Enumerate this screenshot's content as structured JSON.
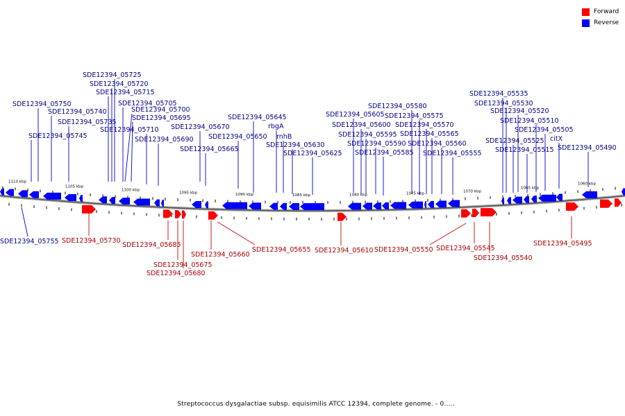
{
  "legend": [
    {
      "label": "Forward",
      "color": "#ff0000"
    },
    {
      "label": "Reverse",
      "color": "#0000ff"
    }
  ],
  "colors": {
    "forward": "#ff0000",
    "reverse": "#0000ff",
    "forward_label": "#aa0000",
    "reverse_label": "#000088"
  },
  "caption": "Streptococcus dysgalactiae subsp. equisimilis ATCC 12394, complete genome. - 0.....",
  "scale_labels": [
    "1110 kbp",
    "1105 kbp",
    "1100 kbp",
    "1095 kbp",
    "1090 kbp",
    "1085 kbp",
    "1080 kbp",
    "1075 kbp",
    "1070 kbp",
    "1065 kbp",
    "1060 kbp"
  ],
  "reverse_genes": [
    "SDE12394_05725",
    "SDE12394_05720",
    "SDE12394_05715",
    "SDE12394_05705",
    "SDE12394_05750",
    "SDE12394_05700",
    "SDE12394_05740",
    "SDE12394_05695",
    "SDE12394_05735",
    "SDE12394_05670",
    "SDE12394_05710",
    "SDE12394_05745",
    "SDE12394_05690",
    "SDE12394_05665",
    "SDE12394_05645",
    "SDE12394_05650",
    "rbgA",
    "rnhB",
    "SDE12394_05630",
    "SDE12394_05625",
    "SDE12394_05580",
    "SDE12394_05605",
    "SDE12394_05575",
    "SDE12394_05600",
    "SDE12394_05570",
    "SDE12394_05595",
    "SDE12394_05565",
    "SDE12394_05590",
    "SDE12394_05560",
    "SDE12394_05585",
    "SDE12394_05555",
    "SDE12394_05535",
    "SDE12394_05530",
    "SDE12394_05520",
    "SDE12394_05510",
    "SDE12394_05505",
    "citX",
    "SDE12394_05525",
    "SDE12394_05515",
    "SDE12394_05490",
    "SDE12394_05755"
  ],
  "forward_genes": [
    "SDE12394_05730",
    "SDE12394_05685",
    "SDE12394_05675",
    "SDE12394_05680",
    "SDE12394_05660",
    "SDE12394_05655",
    "SDE12394_05610",
    "SDE12394_05550",
    "SDE12394_05545",
    "SDE12394_05540",
    "SDE12394_05495"
  ]
}
